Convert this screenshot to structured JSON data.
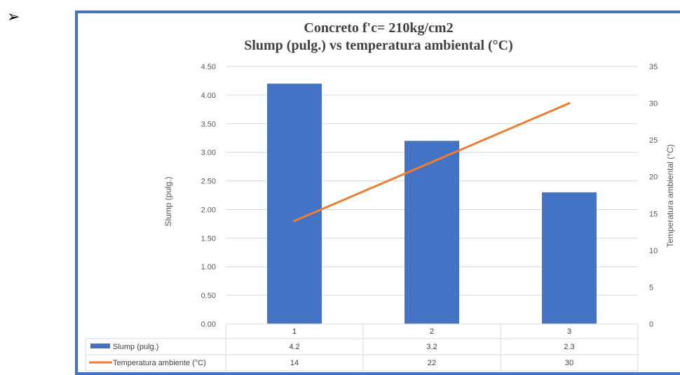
{
  "bullet": "➢",
  "chart_data": {
    "type": "bar",
    "title": "Concreto f'c= 210kg/cm2",
    "subtitle": "Slump (pulg.) vs temperatura ambiental (°C)",
    "categories": [
      "1",
      "2",
      "3"
    ],
    "series": [
      {
        "name": "Slump (pulg.)",
        "type": "bar",
        "axis": "left",
        "values": [
          4.2,
          3.2,
          2.3
        ],
        "color": "#4472c4"
      },
      {
        "name": "Temperatura ambiente (°C)",
        "type": "line",
        "axis": "right",
        "values": [
          14,
          22,
          30
        ],
        "color": "#ed7d31"
      }
    ],
    "ylabel": "Slump (pulg.)",
    "y2label": "Temperatura ambiental (°C)",
    "ylim": [
      0,
      4.5
    ],
    "y2lim": [
      0,
      35
    ],
    "yticks": [
      "0.00",
      "0.50",
      "1.00",
      "1.50",
      "2.00",
      "2.50",
      "3.00",
      "3.50",
      "4.00",
      "4.50"
    ],
    "y2ticks": [
      "0",
      "5",
      "10",
      "15",
      "20",
      "25",
      "30",
      "35"
    ],
    "grid": true,
    "legend": "data-table",
    "table_rows": [
      {
        "label": "Slump (pulg.)",
        "values": [
          "4.2",
          "3.2",
          "2.3"
        ]
      },
      {
        "label": "Temperatura ambiente (°C)",
        "values": [
          "14",
          "22",
          "30"
        ]
      }
    ]
  }
}
